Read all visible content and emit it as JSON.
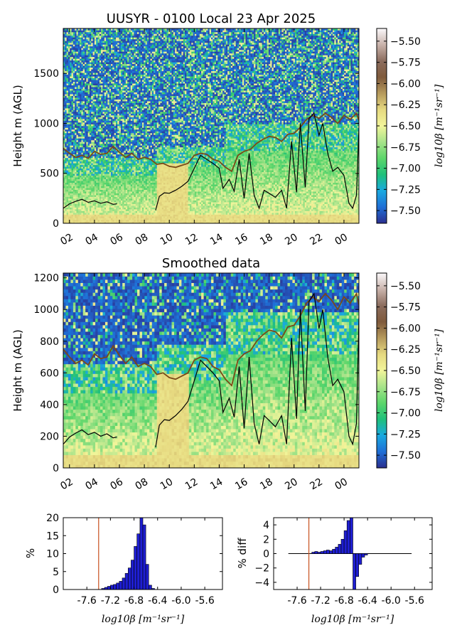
{
  "colors": {
    "colormap": [
      "#2b2f8f",
      "#1f6fd6",
      "#1aa9e0",
      "#1fc07a",
      "#5cd66a",
      "#a7e38a",
      "#f2f59a",
      "#e6d980",
      "#b69a5c",
      "#7f5a3c",
      "#8c6d5e",
      "#c9b3ab",
      "#fbf9fb"
    ],
    "line_black": "#000000",
    "line_brown": "#7a4a18",
    "hist_fill": "#1e1ed2",
    "threshold": "#c8501e"
  },
  "chart_data": [
    {
      "type": "heatmap",
      "title": "UUSYR - 0100 Local 23 Apr 2025",
      "ylabel": "Height m (AGL)",
      "ylim": [
        0,
        1950
      ],
      "yticks": [
        "0",
        "500",
        "1000",
        "1500"
      ],
      "x_range_hours": [
        1.5,
        25.2
      ],
      "xticks": [
        "02",
        "04",
        "06",
        "08",
        "10",
        "12",
        "14",
        "16",
        "18",
        "20",
        "22",
        "00"
      ],
      "colorbar": {
        "label": "log10β [m⁻¹sr⁻¹]",
        "ticks": [
          "-5.50",
          "-5.75",
          "-6.00",
          "-6.25",
          "-6.50",
          "-6.75",
          "-7.00",
          "-7.25",
          "-7.50"
        ],
        "range": [
          -7.65,
          -5.35
        ]
      },
      "lines": {
        "black": [
          [
            1.5,
            150
          ],
          [
            2,
            195
          ],
          [
            2.5,
            220
          ],
          [
            3,
            240
          ],
          [
            3.5,
            210
          ],
          [
            4,
            225
          ],
          [
            4.5,
            200
          ],
          [
            5,
            215
          ],
          [
            5.5,
            190
          ],
          [
            5.8,
            195
          ],
          null,
          [
            8.9,
            130
          ],
          [
            9.2,
            270
          ],
          [
            9.6,
            305
          ],
          [
            10,
            300
          ],
          [
            10.5,
            330
          ],
          [
            11,
            370
          ],
          [
            11.5,
            420
          ],
          [
            12,
            550
          ],
          [
            12.5,
            680
          ],
          [
            13,
            640
          ],
          [
            13.5,
            600
          ],
          [
            14,
            550
          ],
          [
            14.3,
            350
          ],
          [
            14.8,
            440
          ],
          [
            15.2,
            320
          ],
          [
            15.6,
            640
          ],
          [
            16,
            250
          ],
          [
            16.4,
            700
          ],
          [
            16.8,
            280
          ],
          [
            17.2,
            150
          ],
          [
            17.6,
            330
          ],
          [
            18,
            300
          ],
          [
            18.5,
            260
          ],
          [
            19,
            330
          ],
          [
            19.4,
            150
          ],
          [
            19.8,
            820
          ],
          [
            20.2,
            310
          ],
          [
            20.5,
            1000
          ],
          [
            20.9,
            360
          ],
          [
            21.2,
            1050
          ],
          [
            21.6,
            1100
          ],
          [
            22,
            880
          ],
          [
            22.3,
            1000
          ],
          [
            22.7,
            700
          ],
          [
            23.1,
            520
          ],
          [
            23.5,
            560
          ],
          [
            24,
            480
          ],
          [
            24.4,
            200
          ],
          [
            24.7,
            150
          ],
          [
            25,
            280
          ],
          [
            25.2,
            950
          ]
        ],
        "brown": [
          [
            1.5,
            750
          ],
          [
            2,
            700
          ],
          [
            2.5,
            660
          ],
          [
            3,
            680
          ],
          [
            3.5,
            650
          ],
          [
            4,
            720
          ],
          [
            4.5,
            690
          ],
          [
            5,
            700
          ],
          [
            5.5,
            770
          ],
          [
            6,
            710
          ],
          [
            6.5,
            660
          ],
          [
            7,
            700
          ],
          [
            7.5,
            640
          ],
          [
            8,
            660
          ],
          [
            8.5,
            640
          ],
          [
            9,
            590
          ],
          [
            9.5,
            600
          ],
          [
            10,
            570
          ],
          [
            10.5,
            560
          ],
          [
            11,
            580
          ],
          [
            11.5,
            600
          ],
          [
            12,
            680
          ],
          [
            12.5,
            700
          ],
          [
            13,
            690
          ],
          [
            13.5,
            640
          ],
          [
            14,
            620
          ],
          [
            14.5,
            560
          ],
          [
            15,
            520
          ],
          [
            15.5,
            680
          ],
          [
            16,
            720
          ],
          [
            16.5,
            740
          ],
          [
            17,
            800
          ],
          [
            17.5,
            840
          ],
          [
            18,
            870
          ],
          [
            18.5,
            860
          ],
          [
            19,
            820
          ],
          [
            19.5,
            890
          ],
          [
            20,
            900
          ],
          [
            20.5,
            960
          ],
          [
            21,
            1040
          ],
          [
            21.5,
            1080
          ],
          [
            22,
            1050
          ],
          [
            22.5,
            1100
          ],
          [
            23,
            1060
          ],
          [
            23.5,
            1000
          ],
          [
            24,
            1080
          ],
          [
            24.5,
            1040
          ],
          [
            25,
            1100
          ],
          [
            25.2,
            1030
          ]
        ]
      }
    },
    {
      "type": "heatmap",
      "title": "Smoothed data",
      "ylabel": "Height m (AGL)",
      "ylim": [
        0,
        1230
      ],
      "yticks": [
        "0",
        "200",
        "400",
        "600",
        "800",
        "1000",
        "1200"
      ],
      "x_range_hours": [
        1.5,
        25.2
      ],
      "xticks": [
        "02",
        "04",
        "06",
        "08",
        "10",
        "12",
        "14",
        "16",
        "18",
        "20",
        "22",
        "00"
      ],
      "colorbar": {
        "label": "log10β [m⁻¹sr⁻¹]",
        "ticks": [
          "-5.50",
          "-5.75",
          "-6.00",
          "-6.25",
          "-6.50",
          "-6.75",
          "-7.00",
          "-7.25",
          "-7.50"
        ],
        "range": [
          -7.65,
          -5.35
        ]
      }
    },
    {
      "type": "bar",
      "xlabel": "log10β [m⁻¹sr⁻¹]",
      "ylabel": "%",
      "ylim": [
        0,
        20
      ],
      "xlim": [
        -8.0,
        -5.3
      ],
      "yticks": [
        "0",
        "5",
        "10",
        "15",
        "20"
      ],
      "xticks": [
        "-7.6",
        "-7.2",
        "-6.8",
        "-6.4",
        "-6.0",
        "-5.6"
      ],
      "threshold": -7.4,
      "bin_width": 0.05,
      "bins": [
        -7.35,
        -7.3,
        -7.25,
        -7.2,
        -7.15,
        -7.1,
        -7.05,
        -7.0,
        -6.95,
        -6.9,
        -6.85,
        -6.8,
        -6.75,
        -6.7,
        -6.65,
        -6.6,
        -6.55,
        -6.5
      ],
      "values": [
        0.3,
        0.6,
        0.9,
        1.2,
        1.4,
        1.8,
        2.3,
        3.2,
        4.5,
        6.0,
        8.2,
        12.0,
        15.5,
        20.0,
        18.0,
        7.0,
        1.2,
        0.3
      ]
    },
    {
      "type": "bar",
      "xlabel": "log10β [m⁻¹sr⁻¹]",
      "ylabel": "% diff",
      "ylim": [
        -5,
        5
      ],
      "xlim": [
        -8.0,
        -5.3
      ],
      "yticks": [
        "4",
        "2",
        "0",
        "−2",
        "−4"
      ],
      "xticks": [
        "-7.6",
        "-7.2",
        "-6.8",
        "-6.4",
        "-6.0",
        "-5.6"
      ],
      "threshold": -7.4,
      "baseline_range": [
        -7.75,
        -5.65
      ],
      "bin_width": 0.05,
      "bins": [
        -7.35,
        -7.3,
        -7.25,
        -7.2,
        -7.15,
        -7.1,
        -7.05,
        -7.0,
        -6.95,
        -6.9,
        -6.85,
        -6.8,
        -6.75,
        -6.7,
        -6.65,
        -6.6,
        -6.55,
        -6.5,
        -6.45
      ],
      "values": [
        0.2,
        0.3,
        0.2,
        0.3,
        0.4,
        0.5,
        0.4,
        0.6,
        0.9,
        1.3,
        2.0,
        3.2,
        4.6,
        5.0,
        -5.0,
        -3.2,
        -1.5,
        -0.5,
        -0.2
      ]
    }
  ]
}
